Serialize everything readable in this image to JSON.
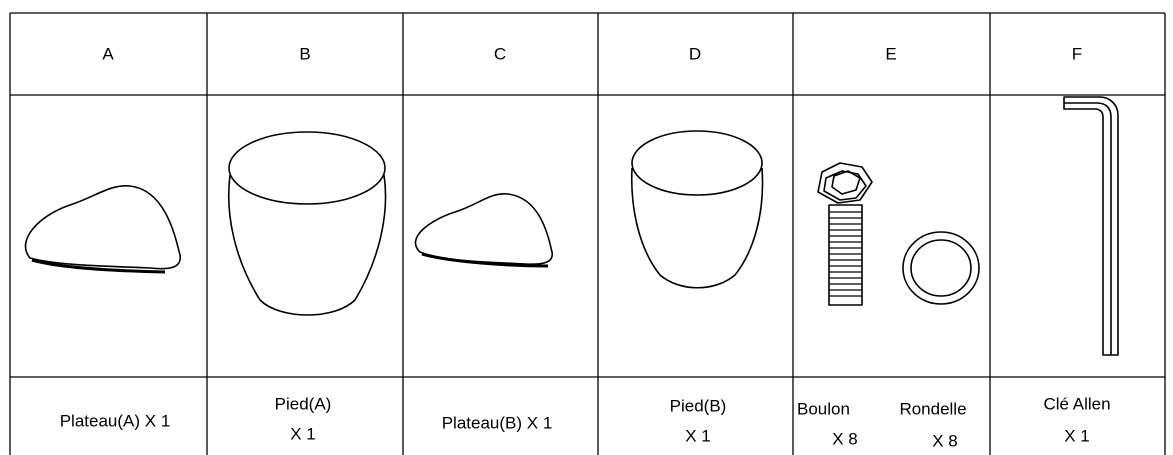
{
  "table": {
    "columns": [
      {
        "letter": "A",
        "lines": [
          "Plateau(A) X 1"
        ]
      },
      {
        "letter": "B",
        "lines": [
          "Pied(A)",
          "X 1"
        ]
      },
      {
        "letter": "C",
        "lines": [
          "Plateau(B) X 1"
        ]
      },
      {
        "letter": "D",
        "lines": [
          "Pied(B)",
          "X 1"
        ]
      },
      {
        "letter": "E",
        "parts": [
          {
            "name": "Boulon",
            "qty": "X 8"
          },
          {
            "name": "Rondelle",
            "qty": "X 8"
          }
        ]
      },
      {
        "letter": "F",
        "lines": [
          "Clé Allen",
          "X 1"
        ]
      }
    ]
  }
}
